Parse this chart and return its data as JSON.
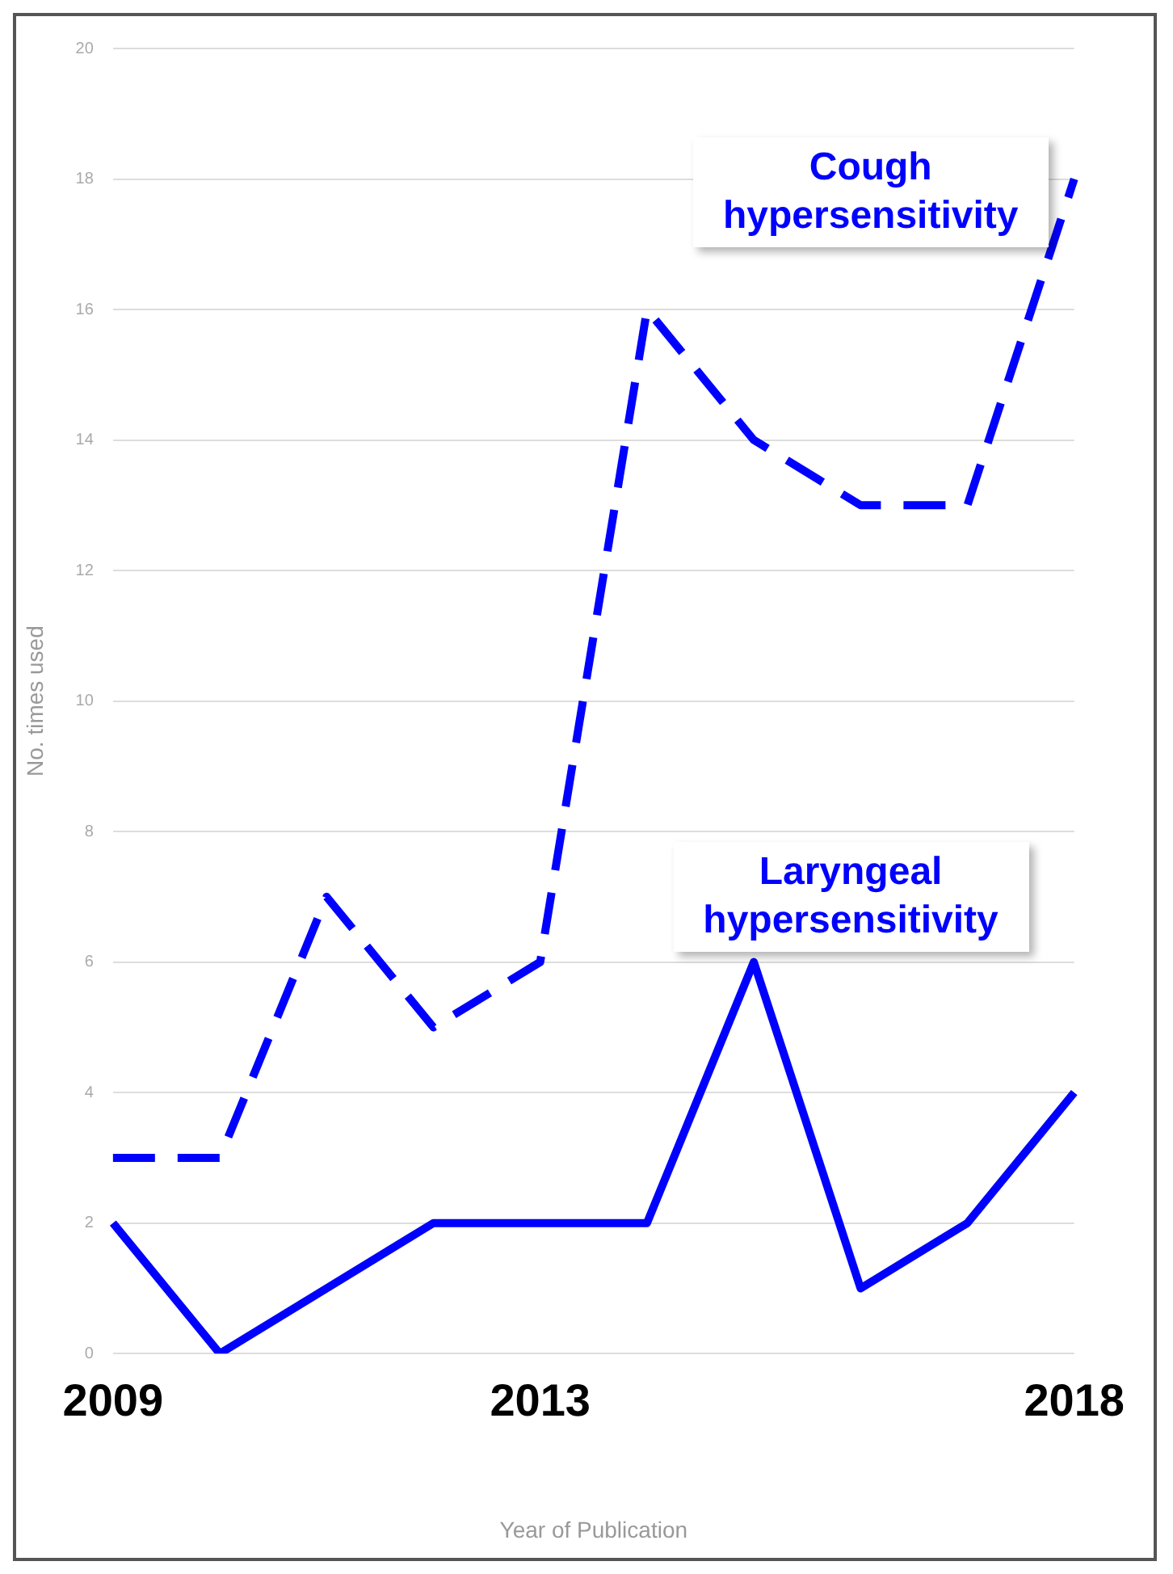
{
  "chart_data": {
    "type": "line",
    "xlabel": "Year of Publication",
    "ylabel": "No. times used",
    "categories": [
      "2009",
      null,
      null,
      null,
      "2013",
      null,
      null,
      null,
      null,
      "2018"
    ],
    "series": [
      {
        "name": "Cough hypersensitivity",
        "color": "#0000ff",
        "line_style": "dashed",
        "values": [
          3,
          3,
          7,
          5,
          6,
          16,
          14,
          13,
          13,
          18
        ]
      },
      {
        "name": "Laryngeal hypersensitivity",
        "color": "#0000ff",
        "line_style": "solid",
        "values": [
          2,
          0,
          1,
          2,
          2,
          2,
          6,
          1,
          2,
          4
        ]
      }
    ],
    "ylim": [
      0,
      20
    ],
    "yticks": [
      0,
      2,
      4,
      6,
      8,
      10,
      12,
      14,
      16,
      18,
      20
    ],
    "grid": "y",
    "legend": false,
    "marker": "none"
  }
}
